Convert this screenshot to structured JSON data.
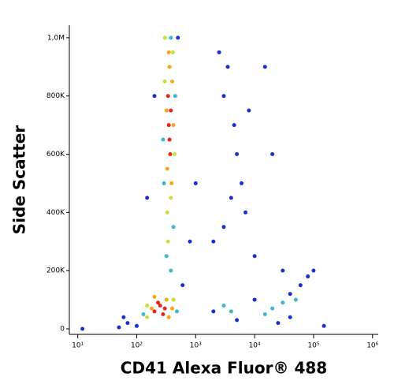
{
  "chart_data": {
    "type": "scatter",
    "x_label": "CD41 Alexa Fluor® 488",
    "y_label": "Side Scatter",
    "xlim": [
      7.2,
      1250000
    ],
    "ylim": [
      -19000,
      1043000
    ],
    "x_log": true,
    "xticks": [
      {
        "value": 10,
        "label": "10¹"
      },
      {
        "value": 100,
        "label": "10²"
      },
      {
        "value": 1000,
        "label": "10³"
      },
      {
        "value": 10000,
        "label": "10⁴"
      },
      {
        "value": 100000,
        "label": "10⁵"
      },
      {
        "value": 1000000,
        "label": "10⁶"
      }
    ],
    "yticks": [
      0,
      {
        "value": 200000,
        "label": "200K"
      },
      {
        "value": 400000,
        "label": "400K"
      },
      {
        "value": 600000,
        "label": "600K"
      },
      {
        "value": 800000,
        "label": "800K"
      },
      {
        "value": 1000000,
        "label": "1,0M"
      }
    ],
    "series": [
      {
        "color": "#1a2fd0",
        "x": [
          3000,
          4500,
          5000,
          3500,
          6000,
          2500,
          7000,
          4000,
          8000,
          2000,
          10000,
          30000,
          60000,
          80000,
          100000,
          5000,
          10000,
          40000,
          2000,
          70,
          100,
          60,
          1000,
          800,
          600,
          20000,
          15000,
          3000,
          12,
          50,
          500,
          200,
          150,
          40000,
          150000,
          25000
        ],
        "values": [
          800000,
          700000,
          600000,
          900000,
          500000,
          950000,
          400000,
          450000,
          750000,
          300000,
          250000,
          200000,
          150000,
          180000,
          200000,
          30000,
          100000,
          40000,
          60000,
          20000,
          10000,
          40000,
          500000,
          300000,
          150000,
          600000,
          900000,
          350000,
          0,
          5000,
          1000000,
          800000,
          450000,
          120000,
          10000,
          20000
        ]
      },
      {
        "color": "#3fb8c8",
        "x": [
          130,
          480,
          320,
          380,
          420,
          290,
          450,
          280,
          3000,
          4000,
          20000,
          30000,
          50000,
          15000,
          380
        ],
        "values": [
          50000,
          60000,
          250000,
          200000,
          350000,
          500000,
          800000,
          650000,
          80000,
          60000,
          70000,
          90000,
          100000,
          50000,
          1000000
        ]
      },
      {
        "color": "#c8e03a",
        "x": [
          150,
          420,
          150,
          330,
          380,
          340,
          410,
          300,
          440,
          300
        ],
        "values": [
          80000,
          100000,
          40000,
          400000,
          450000,
          300000,
          950000,
          850000,
          600000,
          1000000
        ]
      },
      {
        "color": "#f9a51a",
        "x": [
          180,
          320,
          350,
          200,
          400,
          330,
          400,
          360,
          420,
          320,
          390,
          350
        ],
        "values": [
          70000,
          100000,
          40000,
          110000,
          70000,
          550000,
          850000,
          900000,
          700000,
          750000,
          500000,
          950000
        ]
      },
      {
        "color": "#e8251b",
        "x": [
          200,
          250,
          300,
          280,
          230,
          350,
          380,
          360,
          340,
          370
        ],
        "values": [
          60000,
          80000,
          70000,
          50000,
          90000,
          700000,
          750000,
          650000,
          800000,
          600000
        ]
      }
    ]
  }
}
